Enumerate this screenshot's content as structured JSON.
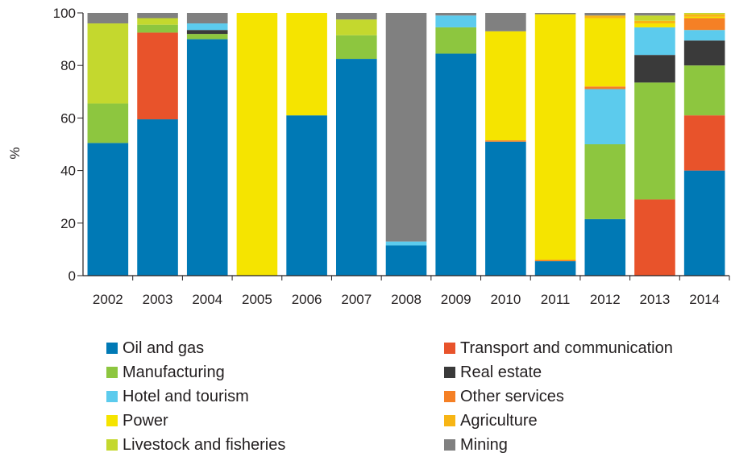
{
  "chart_data": {
    "type": "bar",
    "stacked": true,
    "categories": [
      "2002",
      "2003",
      "2004",
      "2005",
      "2006",
      "2007",
      "2008",
      "2009",
      "2010",
      "2011",
      "2012",
      "2013",
      "2014"
    ],
    "ylabel": "%",
    "ylim": [
      0,
      100
    ],
    "yticks": [
      0,
      20,
      40,
      60,
      80,
      100
    ],
    "grid": false,
    "legend_position": "bottom",
    "series": [
      {
        "name": "Oil and gas",
        "color": "#0079b5",
        "values": [
          50.5,
          59.5,
          90,
          0,
          61,
          82.5,
          11.5,
          84.5,
          51,
          5.5,
          21.5,
          0,
          40
        ]
      },
      {
        "name": "Transport and communication",
        "color": "#e8532b",
        "values": [
          0,
          33,
          0,
          0,
          0,
          0,
          0,
          0,
          0,
          0,
          0,
          29,
          21
        ]
      },
      {
        "name": "Manufacturing",
        "color": "#8dc63f",
        "values": [
          15,
          3,
          2,
          0,
          0,
          9,
          0,
          10,
          0,
          0,
          28.5,
          44.5,
          19
        ]
      },
      {
        "name": "Real estate",
        "color": "#3a3a3a",
        "values": [
          0,
          0,
          1.5,
          0,
          0,
          0,
          0,
          0,
          0,
          0,
          0,
          10.5,
          9.5
        ]
      },
      {
        "name": "Hotel and tourism",
        "color": "#5ccbed",
        "values": [
          0,
          0,
          2.5,
          0,
          0,
          0,
          1.5,
          4.5,
          0,
          0,
          21,
          10.5,
          4
        ]
      },
      {
        "name": "Other services",
        "color": "#f58025",
        "values": [
          0,
          0,
          0,
          0,
          0,
          0,
          0,
          0,
          0.5,
          0.5,
          1,
          0,
          4.5
        ]
      },
      {
        "name": "Power",
        "color": "#f5e400",
        "values": [
          0,
          0,
          0,
          100,
          39,
          0,
          0,
          0,
          41.5,
          93.5,
          26,
          1.5,
          0.5
        ]
      },
      {
        "name": "Agriculture",
        "color": "#f7b515",
        "values": [
          0,
          0,
          0,
          0,
          0,
          0,
          0,
          0,
          0,
          0,
          1,
          1,
          1
        ]
      },
      {
        "name": "Livestock and fisheries",
        "color": "#c4d82e",
        "values": [
          30.5,
          2.5,
          0,
          0,
          0,
          6,
          0,
          0,
          0,
          0,
          0,
          2,
          0.5
        ]
      },
      {
        "name": "Mining",
        "color": "#808080",
        "values": [
          4,
          2,
          4,
          0,
          0,
          2.5,
          87,
          1,
          7,
          0.5,
          1,
          1,
          0
        ]
      }
    ]
  }
}
